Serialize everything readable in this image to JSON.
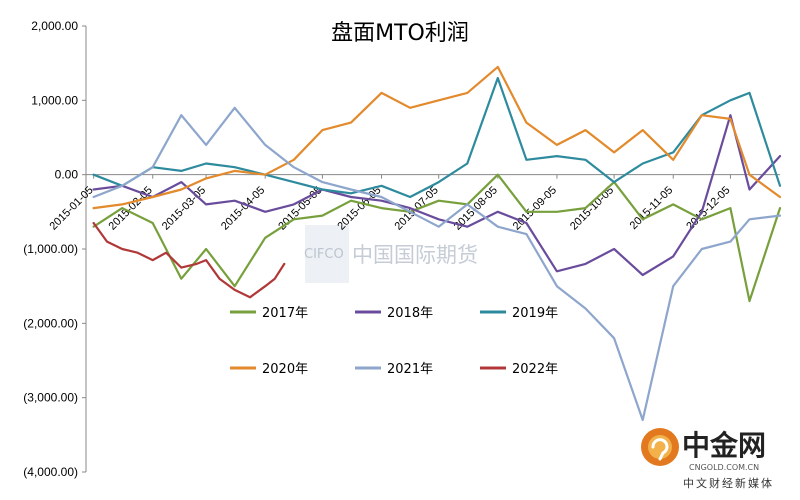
{
  "chart_data": {
    "type": "line",
    "title": "盘面MTO利润",
    "xlabel": "",
    "ylabel": "",
    "ylim": [
      -4000,
      2000
    ],
    "yticks": [
      2000,
      1000,
      0,
      -1000,
      -2000,
      -3000,
      -4000
    ],
    "ytick_labels": [
      "2,000.00",
      "1,000.00",
      "0.00",
      "(1,000.00)",
      "(2,000.00)",
      "(3,000.00)",
      "(4,000.00)"
    ],
    "x_start": "2015-01-01",
    "x_end": "2015-12-31",
    "xtick_labels": [
      "2015-01-05",
      "2015-02-05",
      "2015-03-05",
      "2015-04-05",
      "2015-05-05",
      "2015-06-05",
      "2015-07-05",
      "2015-08-05",
      "2015-09-05",
      "2015-10-05",
      "2015-11-05",
      "2015-12-05"
    ],
    "grid": false,
    "legend_position": "lower-center",
    "series": [
      {
        "name": "2017年",
        "color": "#77a03c",
        "x": [
          "2015-01-05",
          "2015-01-20",
          "2015-02-05",
          "2015-02-20",
          "2015-03-05",
          "2015-03-20",
          "2015-04-05",
          "2015-04-20",
          "2015-05-05",
          "2015-05-20",
          "2015-06-05",
          "2015-06-20",
          "2015-07-05",
          "2015-07-20",
          "2015-08-05",
          "2015-08-20",
          "2015-09-05",
          "2015-09-20",
          "2015-10-05",
          "2015-10-20",
          "2015-11-05",
          "2015-11-20",
          "2015-12-05",
          "2015-12-15",
          "2015-12-31"
        ],
        "values": [
          -700,
          -450,
          -650,
          -1400,
          -1000,
          -1500,
          -850,
          -600,
          -550,
          -350,
          -450,
          -500,
          -350,
          -400,
          0,
          -500,
          -500,
          -450,
          -100,
          -600,
          -400,
          -600,
          -450,
          -1700,
          -450
        ]
      },
      {
        "name": "2018年",
        "color": "#6a4c9c",
        "x": [
          "2015-01-05",
          "2015-01-20",
          "2015-02-05",
          "2015-02-20",
          "2015-03-05",
          "2015-03-20",
          "2015-04-05",
          "2015-04-20",
          "2015-05-05",
          "2015-05-20",
          "2015-06-05",
          "2015-06-20",
          "2015-07-05",
          "2015-07-20",
          "2015-08-05",
          "2015-08-20",
          "2015-09-05",
          "2015-09-20",
          "2015-10-05",
          "2015-10-20",
          "2015-11-05",
          "2015-11-20",
          "2015-12-05",
          "2015-12-15",
          "2015-12-31"
        ],
        "values": [
          -200,
          -150,
          -300,
          -100,
          -400,
          -350,
          -500,
          -400,
          -200,
          -300,
          -350,
          -450,
          -600,
          -700,
          -500,
          -650,
          -1300,
          -1200,
          -1000,
          -1350,
          -1100,
          -500,
          800,
          -200,
          250
        ]
      },
      {
        "name": "2019年",
        "color": "#2e8b9e",
        "x": [
          "2015-01-05",
          "2015-01-20",
          "2015-02-05",
          "2015-02-20",
          "2015-03-05",
          "2015-03-20",
          "2015-04-05",
          "2015-04-20",
          "2015-05-05",
          "2015-05-20",
          "2015-06-05",
          "2015-06-20",
          "2015-07-05",
          "2015-07-20",
          "2015-08-05",
          "2015-08-20",
          "2015-09-05",
          "2015-09-20",
          "2015-10-05",
          "2015-10-20",
          "2015-11-05",
          "2015-11-20",
          "2015-12-05",
          "2015-12-15",
          "2015-12-31"
        ],
        "values": [
          0,
          -150,
          100,
          50,
          150,
          100,
          0,
          -100,
          -200,
          -250,
          -150,
          -300,
          -100,
          150,
          1300,
          200,
          250,
          200,
          -100,
          150,
          300,
          800,
          1000,
          1100,
          -150
        ]
      },
      {
        "name": "2020年",
        "color": "#e28a2c",
        "x": [
          "2015-01-05",
          "2015-01-20",
          "2015-02-05",
          "2015-02-20",
          "2015-03-05",
          "2015-03-20",
          "2015-04-05",
          "2015-04-20",
          "2015-05-05",
          "2015-05-20",
          "2015-06-05",
          "2015-06-20",
          "2015-07-05",
          "2015-07-20",
          "2015-08-05",
          "2015-08-20",
          "2015-09-05",
          "2015-09-20",
          "2015-10-05",
          "2015-10-20",
          "2015-11-05",
          "2015-11-20",
          "2015-12-05",
          "2015-12-15",
          "2015-12-31"
        ],
        "values": [
          -450,
          -400,
          -300,
          -200,
          -50,
          50,
          0,
          200,
          600,
          700,
          1100,
          900,
          1000,
          1100,
          1450,
          700,
          400,
          600,
          300,
          600,
          200,
          800,
          750,
          0,
          -300
        ]
      },
      {
        "name": "2021年",
        "color": "#8ea6cc",
        "x": [
          "2015-01-05",
          "2015-01-20",
          "2015-02-05",
          "2015-02-20",
          "2015-03-05",
          "2015-03-20",
          "2015-04-05",
          "2015-04-20",
          "2015-05-05",
          "2015-05-20",
          "2015-06-05",
          "2015-06-20",
          "2015-07-05",
          "2015-07-20",
          "2015-08-05",
          "2015-08-20",
          "2015-09-05",
          "2015-09-20",
          "2015-10-05",
          "2015-10-20",
          "2015-11-05",
          "2015-11-20",
          "2015-12-05",
          "2015-12-15",
          "2015-12-31"
        ],
        "values": [
          -300,
          -150,
          100,
          800,
          400,
          900,
          400,
          100,
          -100,
          -200,
          -300,
          -500,
          -700,
          -400,
          -700,
          -800,
          -1500,
          -1800,
          -2200,
          -3300,
          -1500,
          -1000,
          -900,
          -600,
          -550
        ]
      },
      {
        "name": "2022年",
        "color": "#b03838",
        "x": [
          "2015-01-05",
          "2015-01-12",
          "2015-01-20",
          "2015-01-28",
          "2015-02-05",
          "2015-02-12",
          "2015-02-20",
          "2015-02-28",
          "2015-03-05",
          "2015-03-12",
          "2015-03-20",
          "2015-03-28",
          "2015-04-05",
          "2015-04-10",
          "2015-04-15"
        ],
        "values": [
          -650,
          -900,
          -1000,
          -1050,
          -1150,
          -1050,
          -1250,
          -1200,
          -1150,
          -1400,
          -1550,
          -1650,
          -1500,
          -1400,
          -1200
        ]
      }
    ]
  },
  "watermark": {
    "logo_text": "CIFCO",
    "name": "中国国际期货"
  },
  "brand": {
    "name": "中金网",
    "domain": "CNGOLD.COM.CN",
    "slogan": "中文财经新媒体"
  }
}
